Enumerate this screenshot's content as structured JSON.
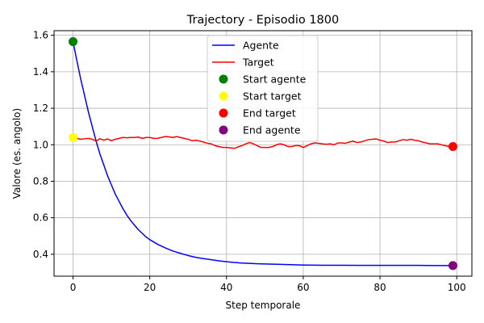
{
  "chart_data": {
    "type": "line",
    "title": "Trajectory - Episodio 1800",
    "xlabel": "Step temporale",
    "ylabel": "Valore (es. angolo)",
    "xlim": [
      -4.95,
      103.95
    ],
    "ylim": [
      0.28,
      1.625
    ],
    "xticks": [
      0,
      20,
      40,
      60,
      80,
      100
    ],
    "yticks": [
      0.4,
      0.6,
      0.8,
      1.0,
      1.2,
      1.4,
      1.6
    ],
    "grid": true,
    "legend_position": "top-center",
    "series": [
      {
        "name": "Agente",
        "color": "#0000ff",
        "x": [
          0,
          1,
          2,
          3,
          4,
          5,
          6,
          7,
          8,
          9,
          10,
          11,
          12,
          13,
          14,
          15,
          16,
          17,
          18,
          19,
          20,
          22,
          24,
          26,
          28,
          30,
          32,
          34,
          36,
          38,
          40,
          42,
          44,
          46,
          48,
          50,
          55,
          60,
          65,
          70,
          75,
          80,
          85,
          90,
          95,
          99
        ],
        "y": [
          1.565,
          1.46,
          1.36,
          1.27,
          1.18,
          1.1,
          1.02,
          0.95,
          0.89,
          0.83,
          0.78,
          0.73,
          0.69,
          0.65,
          0.615,
          0.585,
          0.56,
          0.535,
          0.515,
          0.495,
          0.48,
          0.455,
          0.435,
          0.418,
          0.405,
          0.393,
          0.383,
          0.376,
          0.37,
          0.364,
          0.359,
          0.355,
          0.352,
          0.35,
          0.348,
          0.347,
          0.344,
          0.341,
          0.34,
          0.34,
          0.339,
          0.339,
          0.339,
          0.339,
          0.338,
          0.338
        ]
      },
      {
        "name": "Target",
        "color": "#ff0000",
        "x": [
          0,
          1,
          2,
          3,
          4,
          5,
          6,
          7,
          8,
          9,
          10,
          11,
          12,
          13,
          14,
          15,
          16,
          17,
          18,
          19,
          20,
          21,
          22,
          23,
          24,
          25,
          26,
          27,
          28,
          29,
          30,
          31,
          32,
          33,
          34,
          35,
          36,
          37,
          38,
          39,
          40,
          41,
          42,
          43,
          44,
          45,
          46,
          47,
          48,
          49,
          50,
          51,
          52,
          53,
          54,
          55,
          56,
          57,
          58,
          59,
          60,
          61,
          62,
          63,
          64,
          65,
          66,
          67,
          68,
          69,
          70,
          71,
          72,
          73,
          74,
          75,
          76,
          77,
          78,
          79,
          80,
          81,
          82,
          83,
          84,
          85,
          86,
          87,
          88,
          89,
          90,
          91,
          92,
          93,
          94,
          95,
          96,
          97,
          98,
          99
        ],
        "y": [
          1.04,
          1.035,
          1.03,
          1.033,
          1.035,
          1.03,
          1.02,
          1.033,
          1.025,
          1.032,
          1.022,
          1.03,
          1.035,
          1.04,
          1.038,
          1.04,
          1.04,
          1.042,
          1.035,
          1.04,
          1.04,
          1.035,
          1.035,
          1.04,
          1.045,
          1.043,
          1.04,
          1.045,
          1.04,
          1.035,
          1.03,
          1.022,
          1.025,
          1.02,
          1.015,
          1.008,
          1.005,
          0.995,
          0.99,
          0.985,
          0.985,
          0.983,
          0.98,
          0.988,
          0.995,
          1.005,
          1.012,
          1.005,
          0.995,
          0.985,
          0.985,
          0.985,
          0.99,
          1.0,
          1.005,
          1.0,
          0.99,
          0.99,
          0.995,
          0.995,
          0.985,
          0.995,
          1.005,
          1.01,
          1.008,
          1.005,
          1.003,
          1.005,
          1.0,
          1.01,
          1.01,
          1.008,
          1.015,
          1.02,
          1.012,
          1.015,
          1.022,
          1.028,
          1.03,
          1.032,
          1.025,
          1.02,
          1.012,
          1.015,
          1.015,
          1.022,
          1.028,
          1.025,
          1.03,
          1.025,
          1.022,
          1.015,
          1.01,
          1.005,
          1.005,
          1.005,
          1.0,
          0.995,
          0.99,
          0.995
        ]
      }
    ],
    "markers": [
      {
        "name": "Start agente",
        "color": "#008000",
        "x": 0,
        "y": 1.565
      },
      {
        "name": "Start target",
        "color": "#ffff00",
        "x": 0,
        "y": 1.04
      },
      {
        "name": "End target",
        "color": "#ff0000",
        "x": 99,
        "y": 0.99
      },
      {
        "name": "End agente",
        "color": "#800080",
        "x": 99,
        "y": 0.338
      }
    ]
  }
}
